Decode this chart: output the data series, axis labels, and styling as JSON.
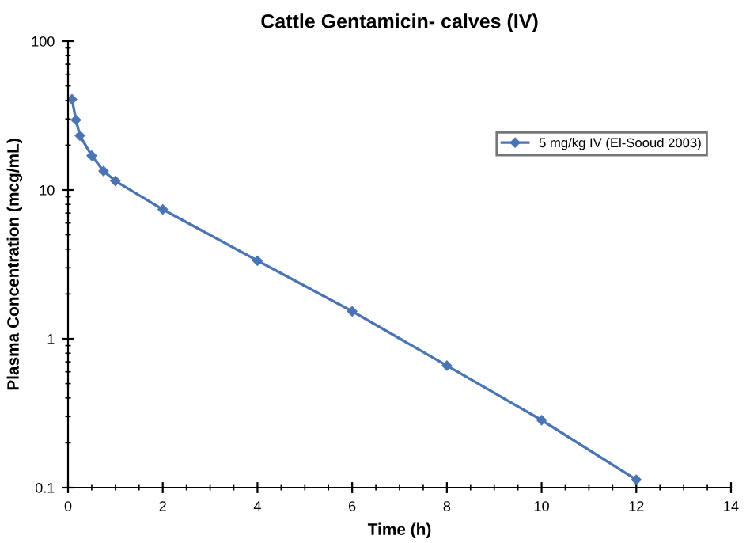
{
  "chart_data": {
    "type": "line",
    "title": "Cattle Gentamicin- calves (IV)",
    "xlabel": "Time (h)",
    "ylabel": "Plasma Concentration (mcg/mL)",
    "x": [
      0.083,
      0.167,
      0.25,
      0.5,
      0.75,
      1,
      2,
      4,
      6,
      8,
      10,
      12
    ],
    "series": [
      {
        "name": "5 mg/kg IV (El-Sooud 2003)",
        "color": "#4a74b4",
        "values": [
          40.7,
          29.6,
          23.2,
          17.0,
          13.4,
          11.5,
          7.4,
          3.35,
          1.53,
          0.66,
          0.284,
          0.113
        ]
      }
    ],
    "log": "y",
    "xlim": [
      0,
      14
    ],
    "xticks": [
      0,
      2,
      4,
      6,
      8,
      10,
      12,
      14
    ],
    "ylim": [
      0.1,
      100
    ],
    "yticks": [
      0.1,
      1,
      10,
      100
    ],
    "grid": false,
    "legend": "right",
    "marker": "diamond",
    "line_style": "solid"
  }
}
